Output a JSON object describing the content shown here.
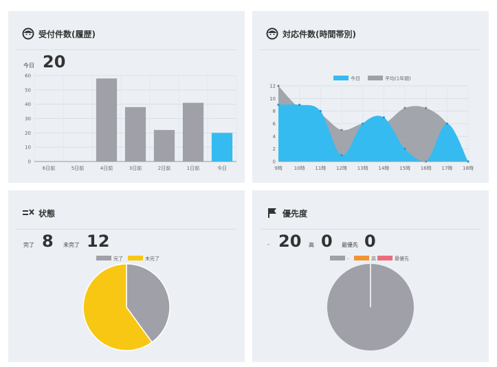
{
  "panels": {
    "reception": {
      "title": "受付件数(履歴)",
      "icon": "face-icon",
      "today_label": "今日",
      "today_value": "20"
    },
    "response": {
      "title": "対応件数(時間帯別)",
      "icon": "face-icon"
    },
    "status": {
      "title": "状態",
      "icon": "checklist-icon",
      "stats": [
        {
          "label": "完了",
          "value": "8"
        },
        {
          "label": "未完了",
          "value": "12"
        }
      ]
    },
    "priority": {
      "title": "優先度",
      "icon": "flag-icon",
      "stats": [
        {
          "label": "-",
          "value": "20"
        },
        {
          "label": "高",
          "value": "0"
        },
        {
          "label": "最優先",
          "value": "0"
        }
      ]
    }
  },
  "chart_data": [
    {
      "type": "bar",
      "categories": [
        "6日前",
        "5日前",
        "4日前",
        "3日前",
        "2日前",
        "1日前",
        "今日"
      ],
      "values": [
        0,
        0,
        58,
        38,
        22,
        41,
        20
      ],
      "ylim": [
        0,
        60
      ],
      "yticks": [
        0,
        10,
        20,
        30,
        40,
        50,
        60
      ],
      "colors": [
        "#9fa0a8",
        "#9fa0a8",
        "#9fa0a8",
        "#9fa0a8",
        "#9fa0a8",
        "#9fa0a8",
        "#36bbf0"
      ],
      "grid": true
    },
    {
      "type": "area",
      "x": [
        "9時",
        "10時",
        "11時",
        "12時",
        "13時",
        "14時",
        "15時",
        "16時",
        "17時",
        "18時"
      ],
      "series": [
        {
          "name": "今日",
          "color": "#36bbf0",
          "values": [
            9,
            9,
            8,
            1,
            6,
            7,
            2,
            0,
            6,
            0
          ]
        },
        {
          "name": "平均(1年間)",
          "color": "#9fa0a8",
          "values": [
            12,
            8.5,
            7.5,
            5,
            6,
            6,
            8.5,
            8.5,
            6,
            0
          ]
        }
      ],
      "ylim": [
        0,
        12
      ],
      "yticks": [
        0,
        2,
        4,
        6,
        8,
        10,
        12
      ],
      "legend": "top-center",
      "grid": true
    },
    {
      "type": "pie",
      "labels": [
        "完了",
        "未完了"
      ],
      "values": [
        8,
        12
      ],
      "colors": [
        "#9fa0a8",
        "#f8c714"
      ],
      "legend": "top"
    },
    {
      "type": "pie",
      "labels": [
        "-",
        "高",
        "最優先"
      ],
      "values": [
        20,
        0,
        0
      ],
      "colors": [
        "#9fa0a8",
        "#f39433",
        "#ef6c7d"
      ],
      "legend": "top"
    }
  ]
}
